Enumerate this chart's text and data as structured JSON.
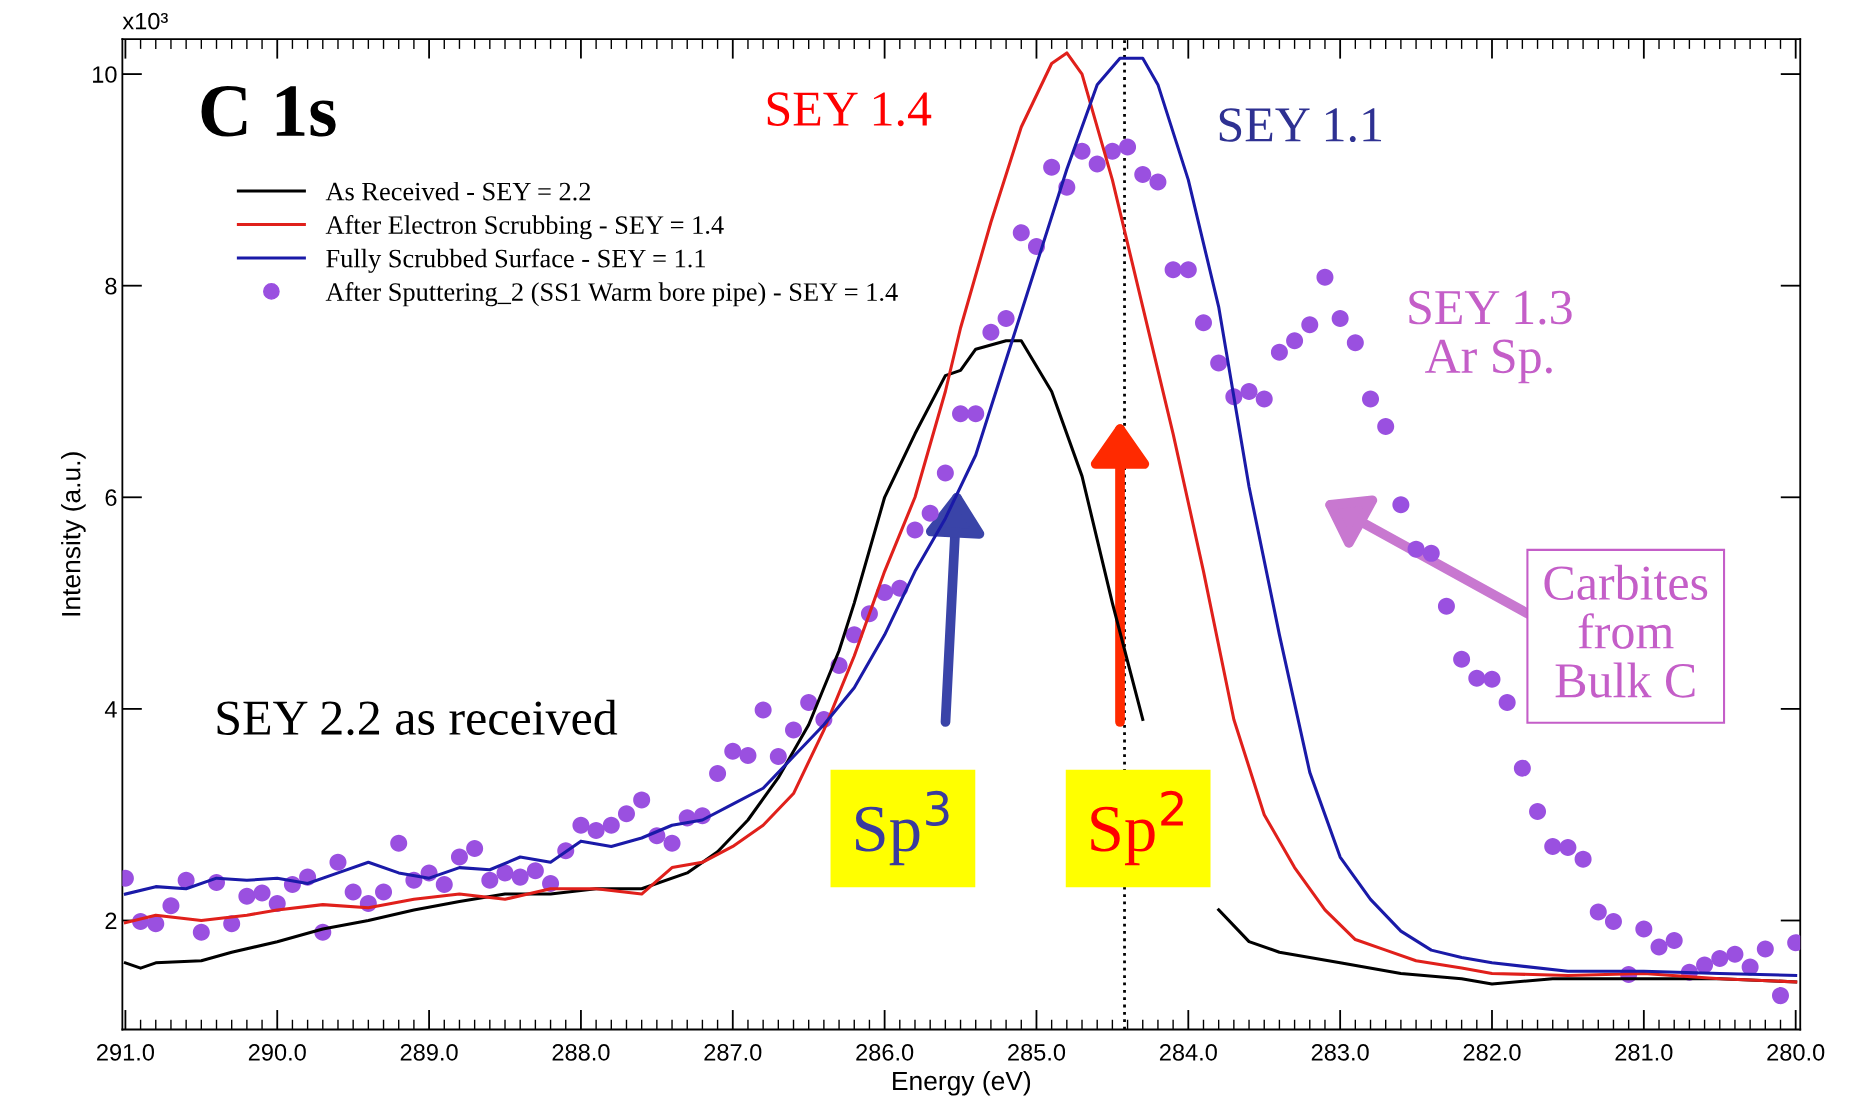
{
  "chart_data": {
    "type": "line",
    "title": "C 1s",
    "xlabel": "Energy (eV)",
    "ylabel": "Intensity (a.u.)",
    "xlim": [
      291.02,
      279.97
    ],
    "ylim": [
      0.97,
      10.33
    ],
    "xticks": [
      {
        "value": 291,
        "label": "291.0"
      },
      {
        "value": 290,
        "label": "290.0"
      },
      {
        "value": 289,
        "label": "289.0"
      },
      {
        "value": 288,
        "label": "288.0"
      },
      {
        "value": 287,
        "label": "287.0"
      },
      {
        "value": 286,
        "label": "286.0"
      },
      {
        "value": 285,
        "label": "285.0"
      },
      {
        "value": 284,
        "label": "284.0"
      },
      {
        "value": 283,
        "label": "283.0"
      },
      {
        "value": 282,
        "label": "282.0"
      },
      {
        "value": 281,
        "label": "281.0"
      },
      {
        "value": 280,
        "label": "280.0"
      }
    ],
    "yticks": [
      10,
      8,
      6,
      4,
      2
    ],
    "grid": false,
    "legend": "top left",
    "line_style": "solid",
    "series": [
      {
        "name": "As Received - SEY = 2.2",
        "color": "#000000",
        "x": [
          291.0,
          290.9,
          290.8,
          290.5,
          290.3,
          290.0,
          289.7,
          289.4,
          289.1,
          288.8,
          288.5,
          288.2,
          287.9,
          287.6,
          287.3,
          287.1,
          286.9,
          286.7,
          286.5,
          286.3,
          286.2,
          286.0,
          285.8,
          285.6,
          285.5,
          285.4,
          285.2,
          285.1,
          284.9,
          284.7,
          284.5,
          284.3,
          284.1,
          284.0,
          283.8,
          283.6,
          283.4,
          283.0,
          282.6,
          282.2,
          282.0,
          281.6,
          281.0,
          280.5,
          280.0
        ],
        "values": [
          1.6,
          1.55,
          1.6,
          1.62,
          1.7,
          1.8,
          1.92,
          2.0,
          2.1,
          2.18,
          2.25,
          2.25,
          2.3,
          2.3,
          2.45,
          2.65,
          2.95,
          3.35,
          3.85,
          4.55,
          5.0,
          6.0,
          6.6,
          7.15,
          7.2,
          7.4,
          7.48,
          7.48,
          7.0,
          6.2,
          5.0,
          3.9,
          null,
          null,
          2.1,
          1.8,
          1.7,
          1.6,
          1.5,
          1.45,
          1.4,
          1.45,
          1.45,
          1.45,
          1.42
        ]
      },
      {
        "name": "After Electron Scrubbing - SEY = 1.4",
        "color": "#e0201b",
        "x": [
          291.0,
          290.8,
          290.5,
          290.2,
          290.0,
          289.7,
          289.4,
          289.1,
          288.8,
          288.5,
          288.2,
          287.9,
          287.6,
          287.4,
          287.2,
          287.0,
          286.8,
          286.6,
          286.4,
          286.2,
          286.0,
          285.8,
          285.6,
          285.5,
          285.3,
          285.1,
          284.9,
          284.8,
          284.7,
          284.5,
          284.3,
          284.1,
          283.9,
          283.7,
          283.5,
          283.3,
          283.1,
          282.9,
          282.7,
          282.5,
          282.2,
          282.0,
          281.5,
          281.0,
          280.5,
          280.0
        ],
        "values": [
          1.98,
          2.05,
          2.0,
          2.05,
          2.1,
          2.15,
          2.12,
          2.2,
          2.25,
          2.2,
          2.3,
          2.3,
          2.25,
          2.5,
          2.55,
          2.7,
          2.9,
          3.2,
          3.8,
          4.5,
          5.3,
          6.0,
          7.0,
          7.6,
          8.6,
          9.5,
          10.1,
          10.2,
          10.0,
          9.0,
          7.8,
          6.6,
          5.3,
          3.9,
          3.0,
          2.5,
          2.1,
          1.82,
          1.72,
          1.62,
          1.55,
          1.5,
          1.48,
          1.5,
          1.45,
          1.42
        ]
      },
      {
        "name": "Fully Scrubbed Surface - SEY = 1.1",
        "color": "#1a1aa8",
        "x": [
          291.0,
          290.8,
          290.6,
          290.4,
          290.2,
          290.0,
          289.8,
          289.6,
          289.4,
          289.2,
          289.0,
          288.8,
          288.6,
          288.4,
          288.2,
          288.0,
          287.8,
          287.6,
          287.4,
          287.2,
          287.0,
          286.8,
          286.6,
          286.4,
          286.2,
          286.0,
          285.8,
          285.6,
          285.4,
          285.2,
          285.0,
          284.8,
          284.6,
          284.45,
          284.3,
          284.2,
          284.0,
          283.8,
          283.6,
          283.4,
          283.2,
          283.0,
          282.8,
          282.6,
          282.4,
          282.2,
          282.0,
          281.5,
          281.0,
          280.5,
          280.0
        ],
        "values": [
          2.25,
          2.32,
          2.3,
          2.4,
          2.38,
          2.4,
          2.35,
          2.45,
          2.55,
          2.45,
          2.4,
          2.5,
          2.48,
          2.6,
          2.55,
          2.75,
          2.7,
          2.78,
          2.9,
          2.95,
          3.1,
          3.25,
          3.55,
          3.85,
          4.2,
          4.7,
          5.3,
          5.8,
          6.4,
          7.3,
          8.2,
          9.1,
          9.9,
          10.15,
          10.15,
          9.9,
          9.0,
          7.8,
          6.1,
          4.7,
          3.4,
          2.6,
          2.2,
          1.9,
          1.72,
          1.65,
          1.6,
          1.52,
          1.52,
          1.5,
          1.48
        ]
      },
      {
        "name": "After Sputtering_2 (SS1 Warm bore pipe) - SEY = 1.4",
        "color": "#9a50e0",
        "type": "scatter",
        "marker": "circle",
        "x": [
          291.0,
          290.9,
          290.8,
          290.7,
          290.6,
          290.5,
          290.4,
          290.3,
          290.2,
          290.1,
          290.0,
          289.9,
          289.8,
          289.7,
          289.6,
          289.5,
          289.4,
          289.3,
          289.2,
          289.1,
          289.0,
          288.9,
          288.8,
          288.7,
          288.6,
          288.5,
          288.4,
          288.3,
          288.2,
          288.1,
          288.0,
          287.9,
          287.8,
          287.7,
          287.6,
          287.5,
          287.4,
          287.3,
          287.2,
          287.1,
          287.0,
          286.9,
          286.8,
          286.7,
          286.6,
          286.5,
          286.4,
          286.3,
          286.2,
          286.1,
          286.0,
          285.9,
          285.8,
          285.7,
          285.6,
          285.5,
          285.4,
          285.3,
          285.2,
          285.1,
          285.0,
          284.9,
          284.8,
          284.7,
          284.6,
          284.5,
          284.4,
          284.3,
          284.2,
          284.1,
          284.0,
          283.9,
          283.8,
          283.7,
          283.6,
          283.5,
          283.4,
          283.3,
          283.2,
          283.1,
          283.0,
          282.9,
          282.8,
          282.7,
          282.6,
          282.5,
          282.4,
          282.3,
          282.2,
          282.1,
          282.0,
          281.9,
          281.8,
          281.7,
          281.6,
          281.5,
          281.4,
          281.3,
          281.2,
          281.1,
          281.0,
          280.9,
          280.8,
          280.7,
          280.6,
          280.5,
          280.4,
          280.3,
          280.2,
          280.1,
          280.0
        ],
        "values": [
          2.4,
          1.99,
          1.97,
          2.14,
          2.38,
          1.89,
          2.36,
          1.97,
          2.23,
          2.26,
          2.16,
          2.34,
          2.41,
          1.89,
          2.55,
          2.27,
          2.16,
          2.27,
          2.73,
          2.38,
          2.45,
          2.34,
          2.6,
          2.68,
          2.38,
          2.45,
          2.41,
          2.47,
          2.35,
          2.66,
          2.9,
          2.85,
          2.9,
          3.01,
          3.14,
          2.8,
          2.73,
          2.97,
          2.99,
          3.39,
          3.6,
          3.56,
          3.99,
          3.55,
          3.8,
          4.06,
          3.9,
          4.41,
          4.7,
          4.9,
          5.1,
          5.14,
          5.69,
          5.85,
          6.23,
          6.79,
          6.79,
          7.56,
          7.69,
          8.5,
          8.37,
          9.12,
          8.93,
          9.27,
          9.15,
          9.27,
          9.31,
          9.05,
          8.98,
          8.15,
          8.15,
          7.65,
          7.27,
          6.95,
          7.0,
          6.93,
          7.37,
          7.48,
          7.63,
          8.08,
          7.69,
          7.46,
          6.93,
          6.67,
          5.93,
          5.51,
          5.47,
          4.97,
          4.47,
          4.29,
          4.28,
          4.06,
          3.44,
          3.03,
          2.7,
          2.69,
          2.58,
          2.08,
          1.99,
          1.49,
          1.92,
          1.75,
          1.81,
          1.51,
          1.58,
          1.64,
          1.68,
          1.56,
          1.73,
          1.29,
          1.79
        ]
      }
    ],
    "ref_lines": [
      {
        "axis": "x",
        "value": 284.42,
        "color": "#000000",
        "line_style": "dotted"
      }
    ],
    "annotations": [
      "x10³",
      "SEY 1.4",
      "SEY 1.1",
      "SEY 1.3\nAr Sp.",
      "SEY 2.2 as received",
      "Sp$^{3}$",
      "Sp$^{2}$",
      "Carbites\nfrom\nBulk C"
    ]
  }
}
